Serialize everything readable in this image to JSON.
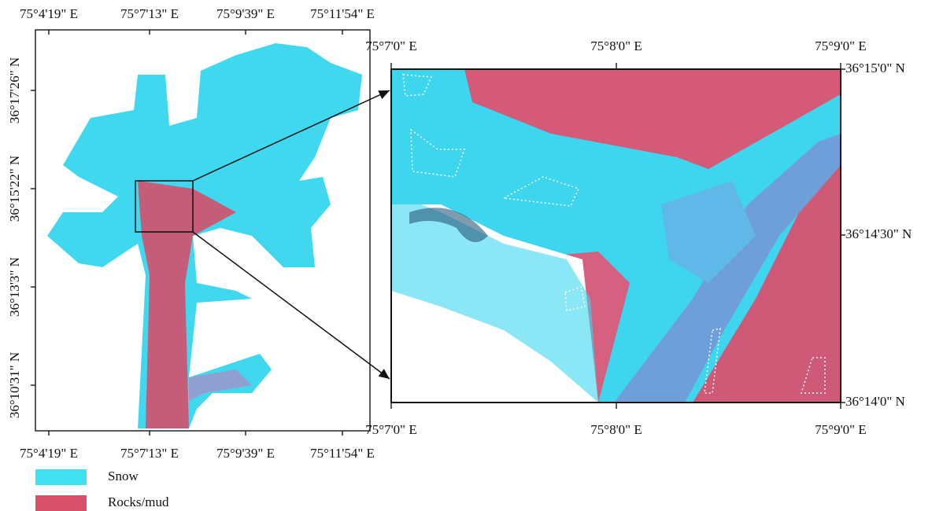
{
  "left_map": {
    "top_ticks": [
      "75°4'19\" E",
      "75°7'13\" E",
      "75°9'39\" E",
      "75°11'54\" E"
    ],
    "bottom_ticks": [
      "75°4'19\" E",
      "75°7'13\" E",
      "75°9'39\" E",
      "75°11'54\" E"
    ],
    "left_ticks": [
      "36°17'26\" N",
      "36°15'22\" N",
      "36°13'3\" N",
      "36°10'31\" N"
    ]
  },
  "right_map": {
    "top_ticks": [
      "75°7'0\" E",
      "75°8'0\" E",
      "75°9'0\" E"
    ],
    "bottom_ticks": [
      "75°7'0\" E",
      "75°8'0\" E",
      "75°9'0\" E"
    ],
    "right_ticks": [
      "36°15'0\" N",
      "36°14'30\" N",
      "36°14'0\" N"
    ]
  },
  "legend": [
    {
      "label": "Snow",
      "color": "#3fe0f0"
    },
    {
      "label": "Rocks/mud",
      "color": "#d9506a"
    }
  ]
}
